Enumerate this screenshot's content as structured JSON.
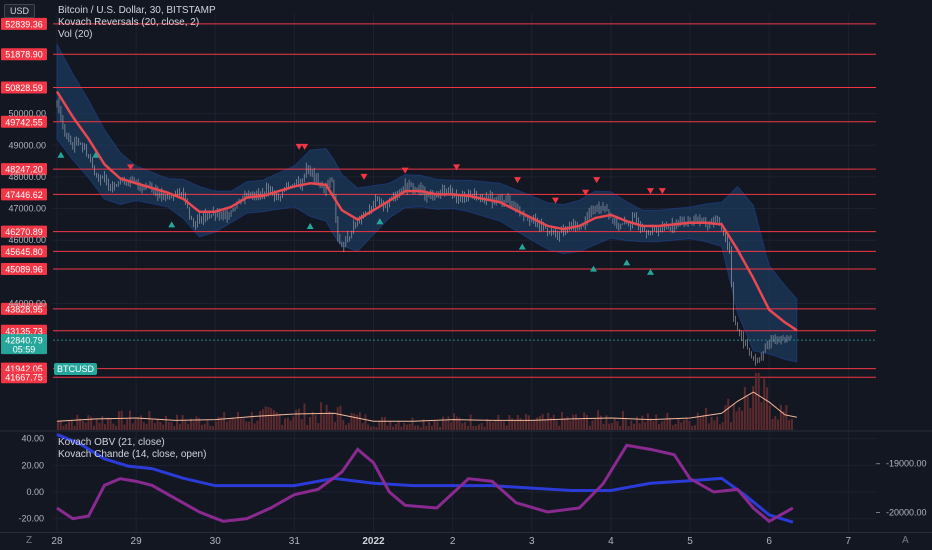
{
  "header": {
    "currency_badge": "USD",
    "title": "Bitcoin / U.S. Dollar, 30, BITSTAMP",
    "indicator1": "Kovach Reversals (20, close, 2)",
    "indicator2": "Vol (20)",
    "ticker_tag": "BTCUSD",
    "osc_line1": "Kovach OBV (21, close)",
    "osc_line2": "Kovach Chande (14, close, open)"
  },
  "corner": {
    "left": "Z",
    "right": "A"
  },
  "colors": {
    "background": "#131722",
    "level_line": "#f23645",
    "basis": "#e8484f",
    "band_fill": "#1c3a5c",
    "candle": "#b2b5be",
    "obv": "#2a3bd8",
    "chande": "#8a2a90",
    "volume": "#5d2a2e",
    "vol_ma": "#f5b89a",
    "up_marker": "#26a69a",
    "down_marker": "#f23645",
    "current_price_tag": "#26a69a"
  },
  "chart_data": [
    {
      "type": "candlestick",
      "name": "Bitcoin / U.S. Dollar, 30, BITSTAMP",
      "x_ticks": [
        "28",
        "29",
        "30",
        "31",
        "2022",
        "2",
        "3",
        "4",
        "5",
        "6",
        "7"
      ],
      "x_ticks_index": [
        0,
        1,
        2,
        3,
        4,
        5,
        6,
        7,
        8,
        9,
        10
      ],
      "y_ticks": [
        "50000.00",
        "49000.00",
        "48000.00",
        "47000.00",
        "46000.00",
        "44000.00"
      ],
      "y_ticks_values": [
        50000,
        49000,
        48000,
        47000,
        46000,
        44000
      ],
      "ylim": [
        40000,
        53150
      ],
      "xlim": [
        -0.05,
        10.35
      ],
      "level_lines": [
        "52839.36",
        "51878.90",
        "50828.59",
        "49742.55",
        "48247.20",
        "47446.62",
        "46270.89",
        "45645.80",
        "45089.96",
        "43828.95",
        "43135.73",
        "41942.05",
        "41667.75"
      ],
      "current_price": "42840.79",
      "countdown": "05:59",
      "close_path": [
        [
          0.0,
          50400
        ],
        [
          0.07,
          49600
        ],
        [
          0.14,
          49150
        ],
        [
          0.21,
          49000
        ],
        [
          0.28,
          49150
        ],
        [
          0.36,
          48850
        ],
        [
          0.45,
          48350
        ],
        [
          0.52,
          48000
        ],
        [
          0.6,
          47900
        ],
        [
          0.68,
          47700
        ],
        [
          0.78,
          47900
        ],
        [
          0.9,
          47850
        ],
        [
          1.0,
          47800
        ],
        [
          1.08,
          47650
        ],
        [
          1.18,
          47750
        ],
        [
          1.3,
          47400
        ],
        [
          1.38,
          47300
        ],
        [
          1.48,
          47500
        ],
        [
          1.6,
          47450
        ],
        [
          1.72,
          46500
        ],
        [
          1.8,
          46650
        ],
        [
          1.9,
          46800
        ],
        [
          2.0,
          46800
        ],
        [
          2.1,
          46700
        ],
        [
          2.2,
          46950
        ],
        [
          2.32,
          47300
        ],
        [
          2.44,
          47500
        ],
        [
          2.56,
          47400
        ],
        [
          2.64,
          47550
        ],
        [
          2.72,
          47500
        ],
        [
          2.8,
          47350
        ],
        [
          2.88,
          47650
        ],
        [
          3.0,
          47800
        ],
        [
          3.08,
          47700
        ],
        [
          3.15,
          48300
        ],
        [
          3.22,
          48100
        ],
        [
          3.3,
          47800
        ],
        [
          3.38,
          47600
        ],
        [
          3.48,
          47900
        ],
        [
          3.55,
          46000
        ],
        [
          3.63,
          45800
        ],
        [
          3.72,
          46300
        ],
        [
          3.82,
          46700
        ],
        [
          3.92,
          46950
        ],
        [
          4.04,
          47200
        ],
        [
          4.16,
          47100
        ],
        [
          4.28,
          47500
        ],
        [
          4.4,
          47700
        ],
        [
          4.52,
          47650
        ],
        [
          4.64,
          47500
        ],
        [
          4.76,
          47350
        ],
        [
          4.88,
          47550
        ],
        [
          5.0,
          47450
        ],
        [
          5.1,
          47300
        ],
        [
          5.2,
          47500
        ],
        [
          5.32,
          47350
        ],
        [
          5.44,
          47300
        ],
        [
          5.56,
          47250
        ],
        [
          5.68,
          47300
        ],
        [
          5.8,
          47050
        ],
        [
          5.9,
          46850
        ],
        [
          6.0,
          46650
        ],
        [
          6.1,
          46450
        ],
        [
          6.2,
          46350
        ],
        [
          6.3,
          46150
        ],
        [
          6.4,
          46300
        ],
        [
          6.5,
          46450
        ],
        [
          6.62,
          46400
        ],
        [
          6.74,
          46900
        ],
        [
          6.86,
          47100
        ],
        [
          6.94,
          47050
        ],
        [
          7.02,
          46600
        ],
        [
          7.1,
          46450
        ],
        [
          7.2,
          46500
        ],
        [
          7.3,
          46650
        ],
        [
          7.4,
          46400
        ],
        [
          7.5,
          46250
        ],
        [
          7.6,
          46350
        ],
        [
          7.7,
          46450
        ],
        [
          7.8,
          46500
        ],
        [
          7.9,
          46600
        ],
        [
          8.0,
          46600
        ],
        [
          8.1,
          46700
        ],
        [
          8.2,
          46450
        ],
        [
          8.3,
          46650
        ],
        [
          8.4,
          46450
        ],
        [
          8.5,
          45700
        ],
        [
          8.55,
          43600
        ],
        [
          8.62,
          43000
        ],
        [
          8.7,
          42700
        ],
        [
          8.78,
          42300
        ],
        [
          8.86,
          42100
        ],
        [
          8.94,
          42500
        ],
        [
          9.02,
          42900
        ],
        [
          9.1,
          42800
        ],
        [
          9.18,
          42950
        ],
        [
          9.26,
          42840
        ]
      ],
      "basis_path": [
        [
          0.0,
          50700
        ],
        [
          0.2,
          49900
        ],
        [
          0.4,
          49200
        ],
        [
          0.6,
          48400
        ],
        [
          0.8,
          47950
        ],
        [
          1.0,
          47800
        ],
        [
          1.2,
          47650
        ],
        [
          1.4,
          47500
        ],
        [
          1.6,
          47300
        ],
        [
          1.8,
          46900
        ],
        [
          2.0,
          46900
        ],
        [
          2.2,
          47050
        ],
        [
          2.4,
          47350
        ],
        [
          2.6,
          47400
        ],
        [
          2.8,
          47550
        ],
        [
          3.0,
          47700
        ],
        [
          3.2,
          47800
        ],
        [
          3.4,
          47750
        ],
        [
          3.6,
          46950
        ],
        [
          3.8,
          46650
        ],
        [
          4.0,
          46950
        ],
        [
          4.2,
          47250
        ],
        [
          4.4,
          47550
        ],
        [
          4.6,
          47550
        ],
        [
          4.8,
          47450
        ],
        [
          5.0,
          47450
        ],
        [
          5.2,
          47400
        ],
        [
          5.4,
          47300
        ],
        [
          5.6,
          47200
        ],
        [
          5.8,
          46950
        ],
        [
          6.0,
          46700
        ],
        [
          6.2,
          46450
        ],
        [
          6.4,
          46350
        ],
        [
          6.6,
          46450
        ],
        [
          6.8,
          46700
        ],
        [
          7.0,
          46800
        ],
        [
          7.2,
          46600
        ],
        [
          7.4,
          46450
        ],
        [
          7.6,
          46450
        ],
        [
          7.8,
          46500
        ],
        [
          8.0,
          46550
        ],
        [
          8.2,
          46550
        ],
        [
          8.4,
          46500
        ],
        [
          8.6,
          45700
        ],
        [
          8.8,
          44800
        ],
        [
          9.0,
          43800
        ],
        [
          9.2,
          43400
        ],
        [
          9.35,
          43150
        ]
      ],
      "band_width_path": [
        [
          0.0,
          1500
        ],
        [
          0.6,
          1100
        ],
        [
          1.0,
          550
        ],
        [
          1.4,
          450
        ],
        [
          1.8,
          800
        ],
        [
          2.2,
          500
        ],
        [
          2.6,
          500
        ],
        [
          3.0,
          650
        ],
        [
          3.2,
          1050
        ],
        [
          3.5,
          1200
        ],
        [
          3.8,
          1000
        ],
        [
          4.2,
          550
        ],
        [
          5.0,
          450
        ],
        [
          5.6,
          600
        ],
        [
          6.0,
          700
        ],
        [
          6.8,
          850
        ],
        [
          7.4,
          500
        ],
        [
          8.0,
          500
        ],
        [
          8.4,
          700
        ],
        [
          8.6,
          2000
        ],
        [
          8.8,
          2300
        ],
        [
          9.0,
          1400
        ],
        [
          9.35,
          1000
        ]
      ],
      "down_markers": [
        [
          0.93,
          48300
        ],
        [
          3.06,
          48950
        ],
        [
          3.13,
          48950
        ],
        [
          3.88,
          48000
        ],
        [
          4.4,
          48200
        ],
        [
          5.05,
          48300
        ],
        [
          5.82,
          47900
        ],
        [
          6.82,
          47900
        ],
        [
          6.3,
          47250
        ],
        [
          6.68,
          47500
        ],
        [
          7.5,
          47550
        ],
        [
          7.65,
          47550
        ]
      ],
      "up_markers": [
        [
          0.05,
          48700
        ],
        [
          0.49,
          48700
        ],
        [
          1.45,
          46500
        ],
        [
          3.2,
          46450
        ],
        [
          4.08,
          46600
        ],
        [
          5.88,
          45800
        ],
        [
          6.78,
          45100
        ],
        [
          7.2,
          45300
        ],
        [
          7.5,
          45000
        ]
      ]
    },
    {
      "type": "bar",
      "name": "Vol (20)",
      "note": "volume histogram with moving average, values in relative units",
      "volume_ma_path": [
        [
          0.0,
          0.22
        ],
        [
          0.5,
          0.28
        ],
        [
          1.0,
          0.3
        ],
        [
          1.5,
          0.24
        ],
        [
          2.0,
          0.26
        ],
        [
          2.5,
          0.34
        ],
        [
          3.0,
          0.4
        ],
        [
          3.5,
          0.42
        ],
        [
          4.0,
          0.22
        ],
        [
          4.5,
          0.22
        ],
        [
          5.0,
          0.26
        ],
        [
          5.5,
          0.24
        ],
        [
          6.0,
          0.24
        ],
        [
          6.5,
          0.28
        ],
        [
          7.0,
          0.3
        ],
        [
          7.5,
          0.26
        ],
        [
          8.0,
          0.3
        ],
        [
          8.4,
          0.42
        ],
        [
          8.6,
          0.72
        ],
        [
          8.8,
          0.95
        ],
        [
          9.0,
          0.7
        ],
        [
          9.2,
          0.38
        ],
        [
          9.35,
          0.32
        ]
      ]
    },
    {
      "type": "line",
      "name": "Kovach OBV / Kovach Chande",
      "y_ticks_left": [
        "40.00",
        "20.00",
        "0.00",
        "-20.00"
      ],
      "y_ticks_left_values": [
        40,
        20,
        0,
        -20
      ],
      "y_ticks_right": [
        "-19000.00",
        "-20000.00"
      ],
      "y_ticks_right_values": [
        -19000,
        -20000
      ],
      "ylim_left": [
        -30,
        45
      ],
      "ylim_right": [
        -20400,
        -18350
      ],
      "series": [
        {
          "name": "Kovach OBV (21, close)",
          "axis": "right",
          "values": [
            [
              0.0,
              -18400
            ],
            [
              0.3,
              -18600
            ],
            [
              0.6,
              -18900
            ],
            [
              0.9,
              -19050
            ],
            [
              1.2,
              -19100
            ],
            [
              1.6,
              -19300
            ],
            [
              2.0,
              -19450
            ],
            [
              2.4,
              -19450
            ],
            [
              3.0,
              -19450
            ],
            [
              3.5,
              -19300
            ],
            [
              4.0,
              -19400
            ],
            [
              4.5,
              -19450
            ],
            [
              5.0,
              -19450
            ],
            [
              5.5,
              -19450
            ],
            [
              6.0,
              -19500
            ],
            [
              6.5,
              -19550
            ],
            [
              7.0,
              -19550
            ],
            [
              7.5,
              -19400
            ],
            [
              8.0,
              -19350
            ],
            [
              8.4,
              -19300
            ],
            [
              8.7,
              -19650
            ],
            [
              9.0,
              -20050
            ],
            [
              9.3,
              -20200
            ]
          ]
        },
        {
          "name": "Kovach Chande (14, close, open)",
          "axis": "left",
          "values": [
            [
              0.0,
              -12
            ],
            [
              0.2,
              -20
            ],
            [
              0.4,
              -18
            ],
            [
              0.6,
              5
            ],
            [
              0.8,
              10
            ],
            [
              1.0,
              8
            ],
            [
              1.2,
              5
            ],
            [
              1.5,
              -5
            ],
            [
              1.8,
              -15
            ],
            [
              2.1,
              -22
            ],
            [
              2.4,
              -20
            ],
            [
              2.7,
              -12
            ],
            [
              3.0,
              -2
            ],
            [
              3.3,
              2
            ],
            [
              3.6,
              15
            ],
            [
              3.8,
              32
            ],
            [
              4.0,
              22
            ],
            [
              4.2,
              0
            ],
            [
              4.4,
              -10
            ],
            [
              4.8,
              -12
            ],
            [
              5.2,
              10
            ],
            [
              5.5,
              8
            ],
            [
              5.8,
              -8
            ],
            [
              6.2,
              -15
            ],
            [
              6.6,
              -12
            ],
            [
              6.9,
              6
            ],
            [
              7.2,
              35
            ],
            [
              7.5,
              32
            ],
            [
              7.8,
              28
            ],
            [
              8.0,
              10
            ],
            [
              8.3,
              0
            ],
            [
              8.6,
              2
            ],
            [
              8.8,
              -12
            ],
            [
              9.0,
              -22
            ],
            [
              9.3,
              -12
            ]
          ]
        }
      ]
    }
  ]
}
